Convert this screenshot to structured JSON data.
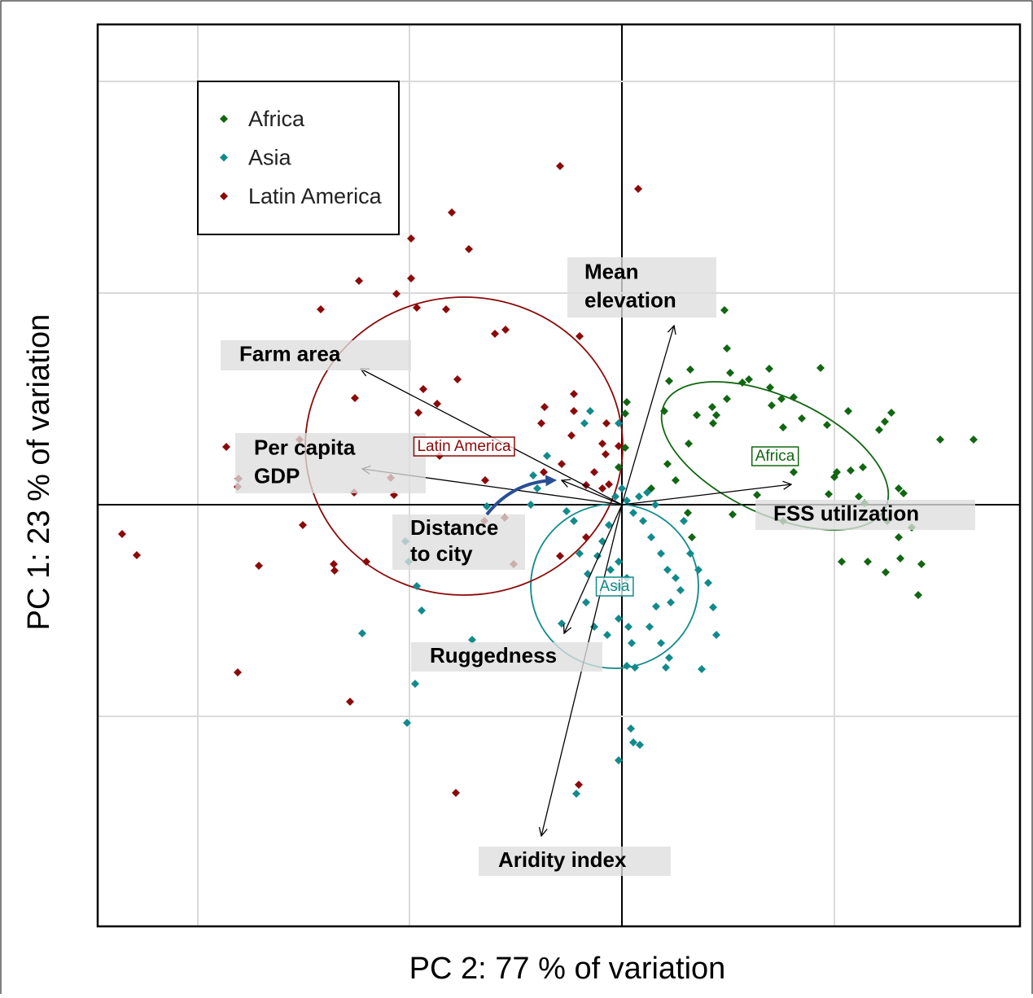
{
  "chart_data": {
    "type": "scatter",
    "xlabel": "PC 2: 77 % of variation",
    "ylabel": "PC 1: 23 % of variation",
    "xlim": [
      -6.44,
      4.89
    ],
    "ylim": [
      -5.18,
      5.9
    ],
    "xticks": [
      -5.21,
      -2.61,
      0,
      2.61
    ],
    "yticks": [
      -2.6,
      0,
      2.6,
      5.2
    ],
    "grid": true,
    "legend": "upper left",
    "series": [
      {
        "name": "Africa",
        "color": "#116611",
        "x": [
          1.26,
          0.58,
          0.84,
          1.29,
          1.33,
          1.48,
          1.56,
          1.81,
          1.96,
          1.82,
          1.84,
          2.11,
          2.44,
          0.06,
          0.04,
          -0.04,
          0.04,
          0.52,
          0.82,
          0.92,
          1.12,
          1.16,
          1.29,
          1.11,
          1.98,
          2.21,
          2.52,
          2.78,
          3.23,
          3.16,
          3.31,
          3.91,
          4.32,
          2.64,
          2.81,
          2.96,
          2.61,
          2.54,
          2.91,
          3.4,
          3.46,
          2.11,
          1.66,
          1.36,
          1.98,
          3.26,
          3.4,
          3.56,
          2.7,
          3.02,
          3.24,
          3.42,
          3.68,
          3.64,
          2.98,
          0.81,
          0.86,
          0.66,
          0.56,
          0.36
        ],
        "values": [
          2.39,
          1.52,
          1.66,
          1.92,
          1.62,
          1.5,
          1.54,
          1.67,
          1.3,
          1.44,
          1.22,
          1.32,
          1.68,
          1.26,
          0.7,
          0.46,
          1.12,
          1.15,
          0.75,
          1.1,
          1.0,
          1.1,
          1.3,
          1.2,
          0.95,
          1.06,
          0.98,
          1.15,
          1.02,
          0.92,
          1.13,
          0.8,
          0.8,
          0.4,
          0.42,
          0.46,
          0.34,
          0.13,
          0.1,
          0.2,
          0.14,
          0.4,
          0.12,
          -0.12,
          -0.2,
          -0.2,
          -0.4,
          -0.28,
          -0.7,
          -0.7,
          -0.83,
          -0.66,
          -0.73,
          -1.11,
          0.02,
          -0.1,
          -0.4,
          0.3,
          0.5,
          0.2
        ],
        "ellipse": {
          "cx": 1.88,
          "cy": 0.6,
          "rx": 1.5,
          "ry": 0.72,
          "angle": -25
        }
      },
      {
        "name": "Asia",
        "color": "#128a8c",
        "x": [
          -0.46,
          -0.39,
          -0.04,
          -0.92,
          -1.09,
          -1.04,
          -1.12,
          -1.66,
          -2.66,
          -2.62,
          -2.52,
          -2.46,
          -3.19,
          -1.84,
          -2.54,
          -2.64,
          -0.68,
          -0.59,
          -0.52,
          -0.42,
          -0.3,
          -0.24,
          -0.16,
          -0.08,
          0,
          0.06,
          0.14,
          0.26,
          0.36,
          0.48,
          0.56,
          0.66,
          0.76,
          0.84,
          0.94,
          0.72,
          0.6,
          0.42,
          0.34,
          0.48,
          0.54,
          0.58,
          0.98,
          1.06,
          1.12,
          1.16,
          -0.04,
          0.08,
          0.12,
          0.16,
          -0.18,
          -0.34,
          0.06,
          0.11,
          0.14,
          0.22,
          -0.04,
          -0.56,
          -0.74,
          -0.44,
          0.41,
          0.31,
          0.21,
          -0.14,
          -0.04,
          -0.04,
          0.06
        ],
        "values": [
          1.0,
          1.15,
          1.0,
          0.6,
          0.36,
          0.2,
          0,
          -0.02,
          -0.45,
          -0.7,
          -1.0,
          -1.3,
          -1.58,
          -1.66,
          -2.2,
          -2.68,
          -0.08,
          -0.2,
          -0.6,
          -0.85,
          -0.63,
          -0.45,
          -0.25,
          0.1,
          0.2,
          0.05,
          -0.1,
          -0.2,
          -0.4,
          -0.6,
          -0.8,
          -0.9,
          -0.2,
          -0.6,
          -0.8,
          -1.05,
          -1.2,
          -1.25,
          -1.5,
          -1.7,
          -2.0,
          -1.88,
          -2.02,
          -0.96,
          -1.26,
          -1.6,
          -1.4,
          -1.5,
          -1.7,
          -2.0,
          -1.6,
          -1.5,
          -1.98,
          -2.75,
          -2.92,
          -2.95,
          -3.14,
          -3.55,
          -1.46,
          -1.2,
          0,
          0.15,
          0.1,
          -0.8,
          -0.7,
          -1.0,
          -0.9
        ],
        "ellipse": {
          "cx": -0.09,
          "cy": -1.0,
          "rx": 1.03,
          "ry": 1.01,
          "angle": 0
        }
      },
      {
        "name": "Latin America",
        "color": "#8b0a0a",
        "x": [
          -0.76,
          0.2,
          -3.63,
          -2.09,
          -2.59,
          -1.88,
          -3.23,
          -2.59,
          -2.77,
          -2.52,
          -3.7,
          -2.16,
          -1.43,
          -1.56,
          -0.52,
          -2.02,
          -3.28,
          -2.44,
          -2.5,
          -2.27,
          -0.59,
          -0.95,
          -4.86,
          -4.71,
          -4.72,
          -3.96,
          -3.29,
          -2.8,
          -2.84,
          -2.24,
          -1.68,
          -1.44,
          -1.33,
          -1.69,
          -0.44,
          -0.76,
          -0.44,
          -0.34,
          -0.24,
          -0.19,
          -0.62,
          -0.74,
          -0.2,
          -6.14,
          -5.96,
          -4.46,
          -3.54,
          -3.53,
          -3.14,
          -3.92,
          -4.72,
          -3.34,
          -2.04,
          -0.53,
          -0.59,
          -0.16,
          -0.04,
          -0.24,
          -0.99,
          -0.96
        ],
        "values": [
          4.16,
          3.88,
          3.55,
          3.59,
          3.27,
          3.14,
          2.75,
          2.78,
          2.59,
          2.42,
          2.4,
          2.4,
          2.15,
          2.1,
          2.07,
          1.54,
          1.31,
          1.42,
          1.13,
          1.24,
          1.36,
          1.2,
          0.71,
          0.32,
          0.22,
          0.8,
          0.15,
          0.12,
          0.33,
          0.6,
          0.3,
          -0.16,
          -0.73,
          -0.2,
          -0.4,
          -0.63,
          0.24,
          0.4,
          0.75,
          1.0,
          0.85,
          0.5,
          0.62,
          -0.36,
          -0.62,
          -0.75,
          -0.73,
          -0.81,
          -0.7,
          -0.25,
          -2.06,
          -2.42,
          -3.54,
          -3.44,
          1.15,
          0.25,
          0.72,
          0.2,
          1.0,
          0.4
        ],
        "ellipse": {
          "cx": -1.94,
          "cy": 0.72,
          "rx": 1.95,
          "ry": 1.83,
          "angle": 0
        }
      }
    ],
    "loadings": [
      {
        "label": [
          "Mean",
          "elevation"
        ],
        "x": 0.64,
        "y": 2.2
      },
      {
        "label": [
          "Farm area"
        ],
        "x": -3.21,
        "y": 1.67
      },
      {
        "label": [
          "Per capita",
          "GDP"
        ],
        "x": -3.19,
        "y": 0.44
      },
      {
        "label": [
          "FSS utilization"
        ],
        "x": 2.08,
        "y": 0.25
      },
      {
        "label": [
          "Distance",
          "to city"
        ],
        "x": -0.74,
        "y": 0.3
      },
      {
        "label": [
          "Ruggedness"
        ],
        "x": -0.71,
        "y": -1.58
      },
      {
        "label": [
          "Aridity index"
        ],
        "x": -0.99,
        "y": -4.07
      }
    ]
  }
}
